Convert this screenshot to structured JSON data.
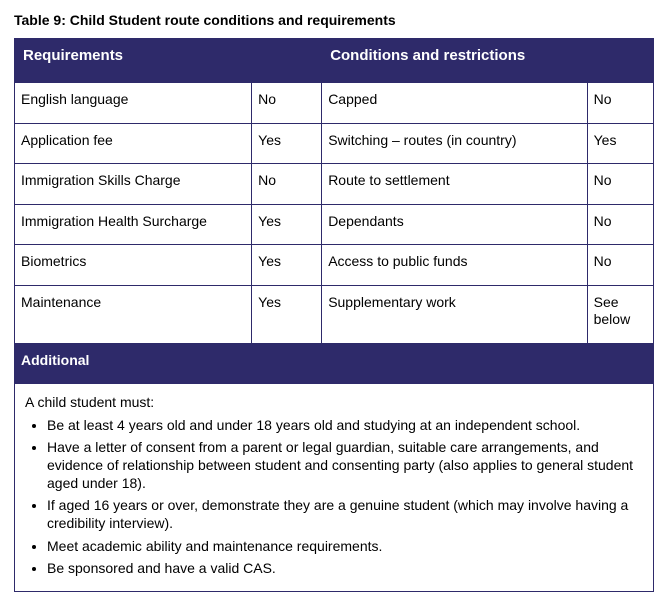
{
  "title": "Table 9: Child Student route conditions and requirements",
  "headers": {
    "requirements": "Requirements",
    "conditions": "Conditions and restrictions"
  },
  "rows": [
    {
      "reqLabel": "English language",
      "reqVal": "No",
      "condLabel": "Capped",
      "condVal": "No"
    },
    {
      "reqLabel": "Application fee",
      "reqVal": "Yes",
      "condLabel": "Switching – routes (in country)",
      "condVal": "Yes"
    },
    {
      "reqLabel": "Immigration Skills Charge",
      "reqVal": "No",
      "condLabel": "Route to settlement",
      "condVal": "No"
    },
    {
      "reqLabel": "Immigration Health Surcharge",
      "reqVal": "Yes",
      "condLabel": "Dependants",
      "condVal": "No"
    },
    {
      "reqLabel": "Biometrics",
      "reqVal": "Yes",
      "condLabel": "Access to public funds",
      "condVal": "No"
    },
    {
      "reqLabel": "Maintenance",
      "reqVal": "Yes",
      "condLabel": "Supplementary work",
      "condVal": "See below"
    }
  ],
  "additional": {
    "heading": "Additional",
    "intro": "A child student must:",
    "bullets": [
      "Be at least 4 years old and under 18 years old and studying at an independent school.",
      "Have a letter of consent from a parent or legal guardian, suitable care arrangements, and evidence of relationship between student and consenting party (also applies to general student aged under 18).",
      "If aged 16 years or over, demonstrate they are a genuine student (which may involve having a credibility interview).",
      "Meet academic ability and maintenance requirements.",
      "Be sponsored and have a valid CAS."
    ]
  },
  "style": {
    "headerBg": "#2e2a6a",
    "headerFg": "#ffffff",
    "borderColor": "#2e2a6a",
    "bodyFg": "#000000",
    "bodyBg": "#ffffff",
    "fontFamily": "Arial, Helvetica, sans-serif",
    "titleFontSize": 14,
    "headerFontSize": 15,
    "cellFontSize": 14,
    "colWidths": {
      "reqLabel": 193,
      "reqVal": 57,
      "condLabel": 216,
      "condVal": 54
    }
  }
}
